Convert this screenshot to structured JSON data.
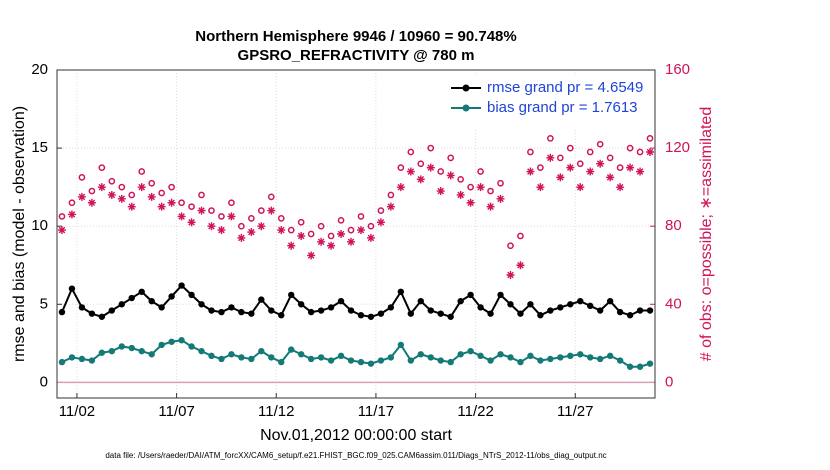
{
  "chart_data": {
    "type": "line",
    "title": "Northern Hemisphere 9946 / 10960 = 90.748%",
    "subtitle": "GPSRO_REFRACTIVITY @ 780 m",
    "x_label": "Nov.01,2012 00:00:00 start",
    "y_label": "rmse and bias (model - observation)",
    "y2_label": "# of obs: o=possible; ∗=assimilated",
    "footnote": "data file: /Users/raeder/DAI/ATM_forcXX/CAM6_setup/f.e21.FHIST_BGC.f09_025.CAM6assim.011/Diags_NTrS_2012-11/obs_diag_output.nc",
    "xlim": [
      0,
      30
    ],
    "xticks": [
      {
        "value": 1,
        "label": "11/02"
      },
      {
        "value": 6,
        "label": "11/07"
      },
      {
        "value": 11,
        "label": "11/12"
      },
      {
        "value": 16,
        "label": "11/17"
      },
      {
        "value": 21,
        "label": "11/22"
      },
      {
        "value": 26,
        "label": "11/27"
      }
    ],
    "ylim": [
      -1,
      20
    ],
    "yticks": [
      0,
      5,
      10,
      15,
      20
    ],
    "y2lim": [
      -8,
      160
    ],
    "y2ticks": [
      0,
      40,
      80,
      120,
      160
    ],
    "grid": true,
    "legend": "upper right",
    "x": [
      0.25,
      0.75,
      1.25,
      1.75,
      2.25,
      2.75,
      3.25,
      3.75,
      4.25,
      4.75,
      5.25,
      5.75,
      6.25,
      6.75,
      7.25,
      7.75,
      8.25,
      8.75,
      9.25,
      9.75,
      10.25,
      10.75,
      11.25,
      11.75,
      12.25,
      12.75,
      13.25,
      13.75,
      14.25,
      14.75,
      15.25,
      15.75,
      16.25,
      16.75,
      17.25,
      17.75,
      18.25,
      18.75,
      19.25,
      19.75,
      20.25,
      20.75,
      21.25,
      21.75,
      22.25,
      22.75,
      23.25,
      23.75,
      24.25,
      24.75,
      25.25,
      25.75,
      26.25,
      26.75,
      27.25,
      27.75,
      28.25,
      28.75,
      29.25,
      29.75
    ],
    "series": [
      {
        "name": "rmse grand pr = 4.6549",
        "color": "#000000",
        "marker": "dot",
        "values": [
          4.5,
          6.0,
          4.8,
          4.4,
          4.2,
          4.6,
          5.0,
          5.4,
          5.8,
          5.2,
          4.8,
          5.5,
          6.2,
          5.6,
          5.0,
          4.6,
          4.5,
          4.8,
          4.5,
          4.4,
          5.3,
          4.6,
          4.3,
          5.6,
          5.0,
          4.5,
          4.6,
          4.8,
          5.2,
          4.6,
          4.3,
          4.2,
          4.4,
          4.8,
          5.8,
          4.4,
          5.2,
          4.6,
          4.4,
          4.2,
          5.2,
          5.6,
          4.8,
          4.4,
          5.6,
          5.0,
          4.4,
          5.0,
          4.3,
          4.6,
          4.8,
          5.0,
          5.2,
          4.9,
          4.6,
          5.2,
          4.5,
          4.3,
          4.6,
          4.6
        ]
      },
      {
        "name": "bias grand pr = 1.7613",
        "color": "#137a78",
        "marker": "dot",
        "values": [
          1.3,
          1.6,
          1.5,
          1.4,
          1.9,
          2.0,
          2.3,
          2.2,
          2.0,
          1.8,
          2.4,
          2.6,
          2.7,
          2.3,
          2.0,
          1.7,
          1.5,
          1.8,
          1.6,
          1.5,
          2.0,
          1.6,
          1.3,
          2.1,
          1.8,
          1.5,
          1.6,
          1.4,
          1.7,
          1.4,
          1.3,
          1.2,
          1.4,
          1.6,
          2.4,
          1.4,
          1.8,
          1.6,
          1.4,
          1.3,
          1.8,
          2.0,
          1.7,
          1.4,
          1.8,
          1.6,
          1.3,
          1.7,
          1.4,
          1.5,
          1.6,
          1.7,
          1.8,
          1.6,
          1.5,
          1.7,
          1.4,
          1.0,
          1.0,
          1.2
        ]
      },
      {
        "axis": "y2",
        "color": "#d0135a",
        "marker": "circle",
        "values": [
          85,
          92,
          105,
          98,
          110,
          103,
          100,
          96,
          108,
          102,
          97,
          100,
          92,
          90,
          96,
          88,
          85,
          92,
          80,
          84,
          88,
          95,
          84,
          78,
          82,
          76,
          80,
          75,
          83,
          78,
          85,
          80,
          88,
          96,
          110,
          118,
          112,
          120,
          108,
          115,
          104,
          100,
          108,
          98,
          102,
          70,
          75,
          118,
          110,
          125,
          115,
          120,
          112,
          118,
          122,
          115,
          110,
          120,
          118,
          125
        ]
      },
      {
        "axis": "y2",
        "color": "#d0135a",
        "marker": "asterisk",
        "values": [
          78,
          86,
          95,
          92,
          100,
          96,
          94,
          90,
          100,
          95,
          90,
          92,
          85,
          82,
          88,
          80,
          78,
          85,
          74,
          77,
          80,
          88,
          78,
          70,
          75,
          65,
          72,
          70,
          76,
          72,
          78,
          74,
          82,
          90,
          100,
          108,
          104,
          110,
          98,
          106,
          96,
          92,
          100,
          90,
          94,
          55,
          60,
          108,
          100,
          115,
          105,
          110,
          100,
          108,
          112,
          105,
          100,
          110,
          108,
          118
        ]
      }
    ]
  }
}
